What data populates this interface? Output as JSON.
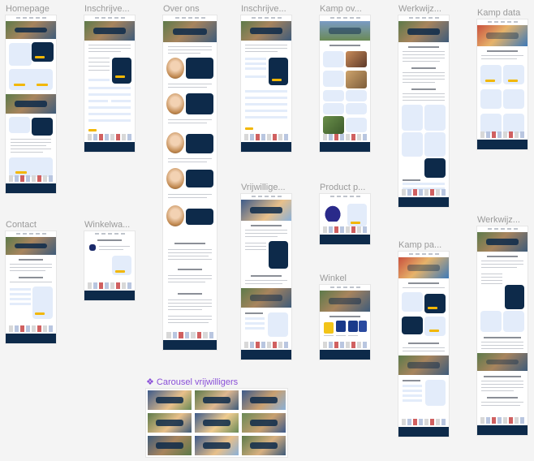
{
  "canvas": {
    "background": "#f4f4f4",
    "frames": [
      {
        "id": "homepage",
        "label": "Homepage"
      },
      {
        "id": "inschrijven-1",
        "label": "Inschrijve..."
      },
      {
        "id": "over-ons",
        "label": "Over ons"
      },
      {
        "id": "inschrijven-2",
        "label": "Inschrijve..."
      },
      {
        "id": "kamp-overzicht",
        "label": "Kamp ov..."
      },
      {
        "id": "werkwijze-1",
        "label": "Werkwijz..."
      },
      {
        "id": "kamp-data",
        "label": "Kamp data"
      },
      {
        "id": "contact",
        "label": "Contact"
      },
      {
        "id": "winkelwagen",
        "label": "Winkelwa..."
      },
      {
        "id": "vrijwilligers",
        "label": "Vrijwillige..."
      },
      {
        "id": "product-pagina",
        "label": "Product p..."
      },
      {
        "id": "kamp-pagina",
        "label": "Kamp pa..."
      },
      {
        "id": "winkel",
        "label": "Winkel"
      },
      {
        "id": "werkwijze-2",
        "label": "Werkwijz..."
      }
    ],
    "component": {
      "icon": "component-diamond-icon",
      "label": "Carousel vrijwilligers"
    }
  },
  "colors": {
    "navy": "#0d2a4a",
    "yellow": "#f2b705",
    "card_blue": "#e3ecfa",
    "component_purple": "#8a4fd8"
  }
}
